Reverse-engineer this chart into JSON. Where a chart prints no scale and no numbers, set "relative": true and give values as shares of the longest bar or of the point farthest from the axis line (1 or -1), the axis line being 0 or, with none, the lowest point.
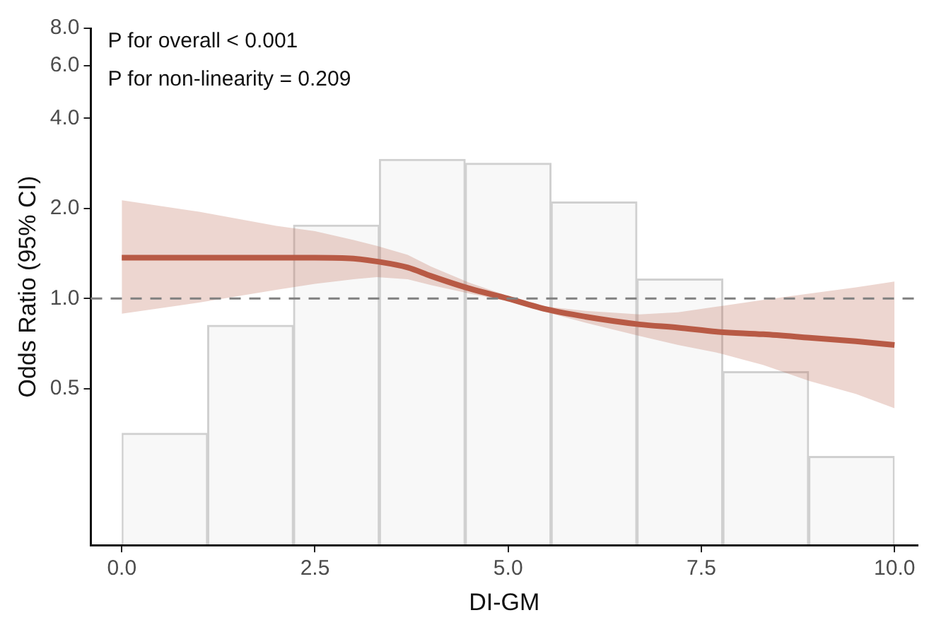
{
  "chart_data": [
    {
      "type": "bar",
      "relative": true,
      "color": "#f8f8f8",
      "categories": [
        null,
        null,
        null,
        null,
        null,
        null,
        null,
        null,
        null
      ],
      "values": [
        0.29,
        0.57,
        0.83,
        1,
        0.99,
        0.89,
        0.69,
        0.45,
        0.23
      ]
    },
    {
      "type": "line",
      "xlabel": "DI-GM",
      "ylabel": "Odds Ratio (95% CI)",
      "log": "y",
      "xlim": [
        -0.4,
        10.3
      ],
      "xticks": [
        {
          "value": 0,
          "label": "0.0"
        },
        2.5,
        {
          "value": 5,
          "label": "5.0"
        },
        7.5,
        {
          "value": 10,
          "label": "10.0"
        }
      ],
      "ylim": [
        0.15,
        8
      ],
      "yticks": [
        0.5,
        {
          "value": 1,
          "label": "1.0"
        },
        {
          "value": 2,
          "label": "2.0"
        },
        {
          "value": 4,
          "label": "4.0"
        },
        {
          "value": 6,
          "label": "6.0"
        },
        {
          "value": 8,
          "label": "8.0"
        }
      ],
      "grid": false,
      "legend": false,
      "series": [
        {
          "color": "#b85a45",
          "x": [
            0,
            1,
            2,
            2.5,
            3,
            3.3,
            3.7,
            4,
            4.5,
            5,
            5.5,
            6,
            6.7,
            7.2,
            7.7,
            8.3,
            8.9,
            9.5,
            10
          ],
          "values": [
            1.37,
            1.37,
            1.37,
            1.37,
            1.36,
            1.33,
            1.27,
            1.19,
            1.08,
            1.0,
            0.92,
            0.87,
            0.82,
            0.8,
            0.775,
            0.76,
            0.74,
            0.72,
            0.7
          ],
          "lower": [
            0.89,
            0.97,
            1.07,
            1.12,
            1.16,
            1.18,
            1.16,
            1.11,
            1.04,
            0.98,
            0.9,
            0.83,
            0.75,
            0.7,
            0.66,
            0.6,
            0.53,
            0.48,
            0.43
          ],
          "upper": [
            2.13,
            1.95,
            1.75,
            1.68,
            1.57,
            1.5,
            1.4,
            1.28,
            1.13,
            1.02,
            0.94,
            0.91,
            0.885,
            0.9,
            0.94,
            0.99,
            1.04,
            1.09,
            1.14
          ]
        }
      ],
      "ref_lines": [
        {
          "axis": "y",
          "value": 1,
          "color": "#808080",
          "line_style": "dashed"
        }
      ],
      "annotations": [
        "P for overall < 0.001",
        "P for non-linearity = 0.209"
      ]
    }
  ]
}
